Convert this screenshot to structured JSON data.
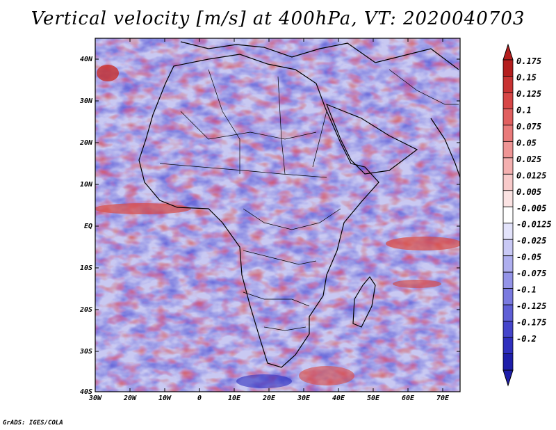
{
  "title": "Vertical velocity [m/s] at 400hPa, VT: 2020040703",
  "credit": "GrADS: IGES/COLA",
  "map": {
    "lat_labels": [
      "40N",
      "30N",
      "20N",
      "10N",
      "EQ",
      "10S",
      "20S",
      "30S",
      "40S"
    ],
    "lon_labels": [
      "30W",
      "20W",
      "10W",
      "0",
      "10E",
      "20E",
      "30E",
      "40E",
      "50E",
      "60E",
      "70E"
    ]
  },
  "colorbar": {
    "labels": [
      "0.175",
      "0.15",
      "0.125",
      "0.1",
      "0.075",
      "0.05",
      "0.025",
      "0.0125",
      "0.005",
      "-0.005",
      "-0.0125",
      "-0.025",
      "-0.05",
      "-0.075",
      "-0.1",
      "-0.125",
      "-0.175",
      "-0.2"
    ],
    "colors": [
      "#b41e1e",
      "#c83232",
      "#d74646",
      "#e15f5f",
      "#e97a7a",
      "#ef9595",
      "#f4b0b0",
      "#f8caca",
      "#fbe3e3",
      "#ffffff",
      "#e3e3fb",
      "#c9c9f5",
      "#afafef",
      "#9494e8",
      "#7a7ae0",
      "#5f5fd6",
      "#4545cb",
      "#2f2fbe",
      "#1e1eaa"
    ]
  }
}
